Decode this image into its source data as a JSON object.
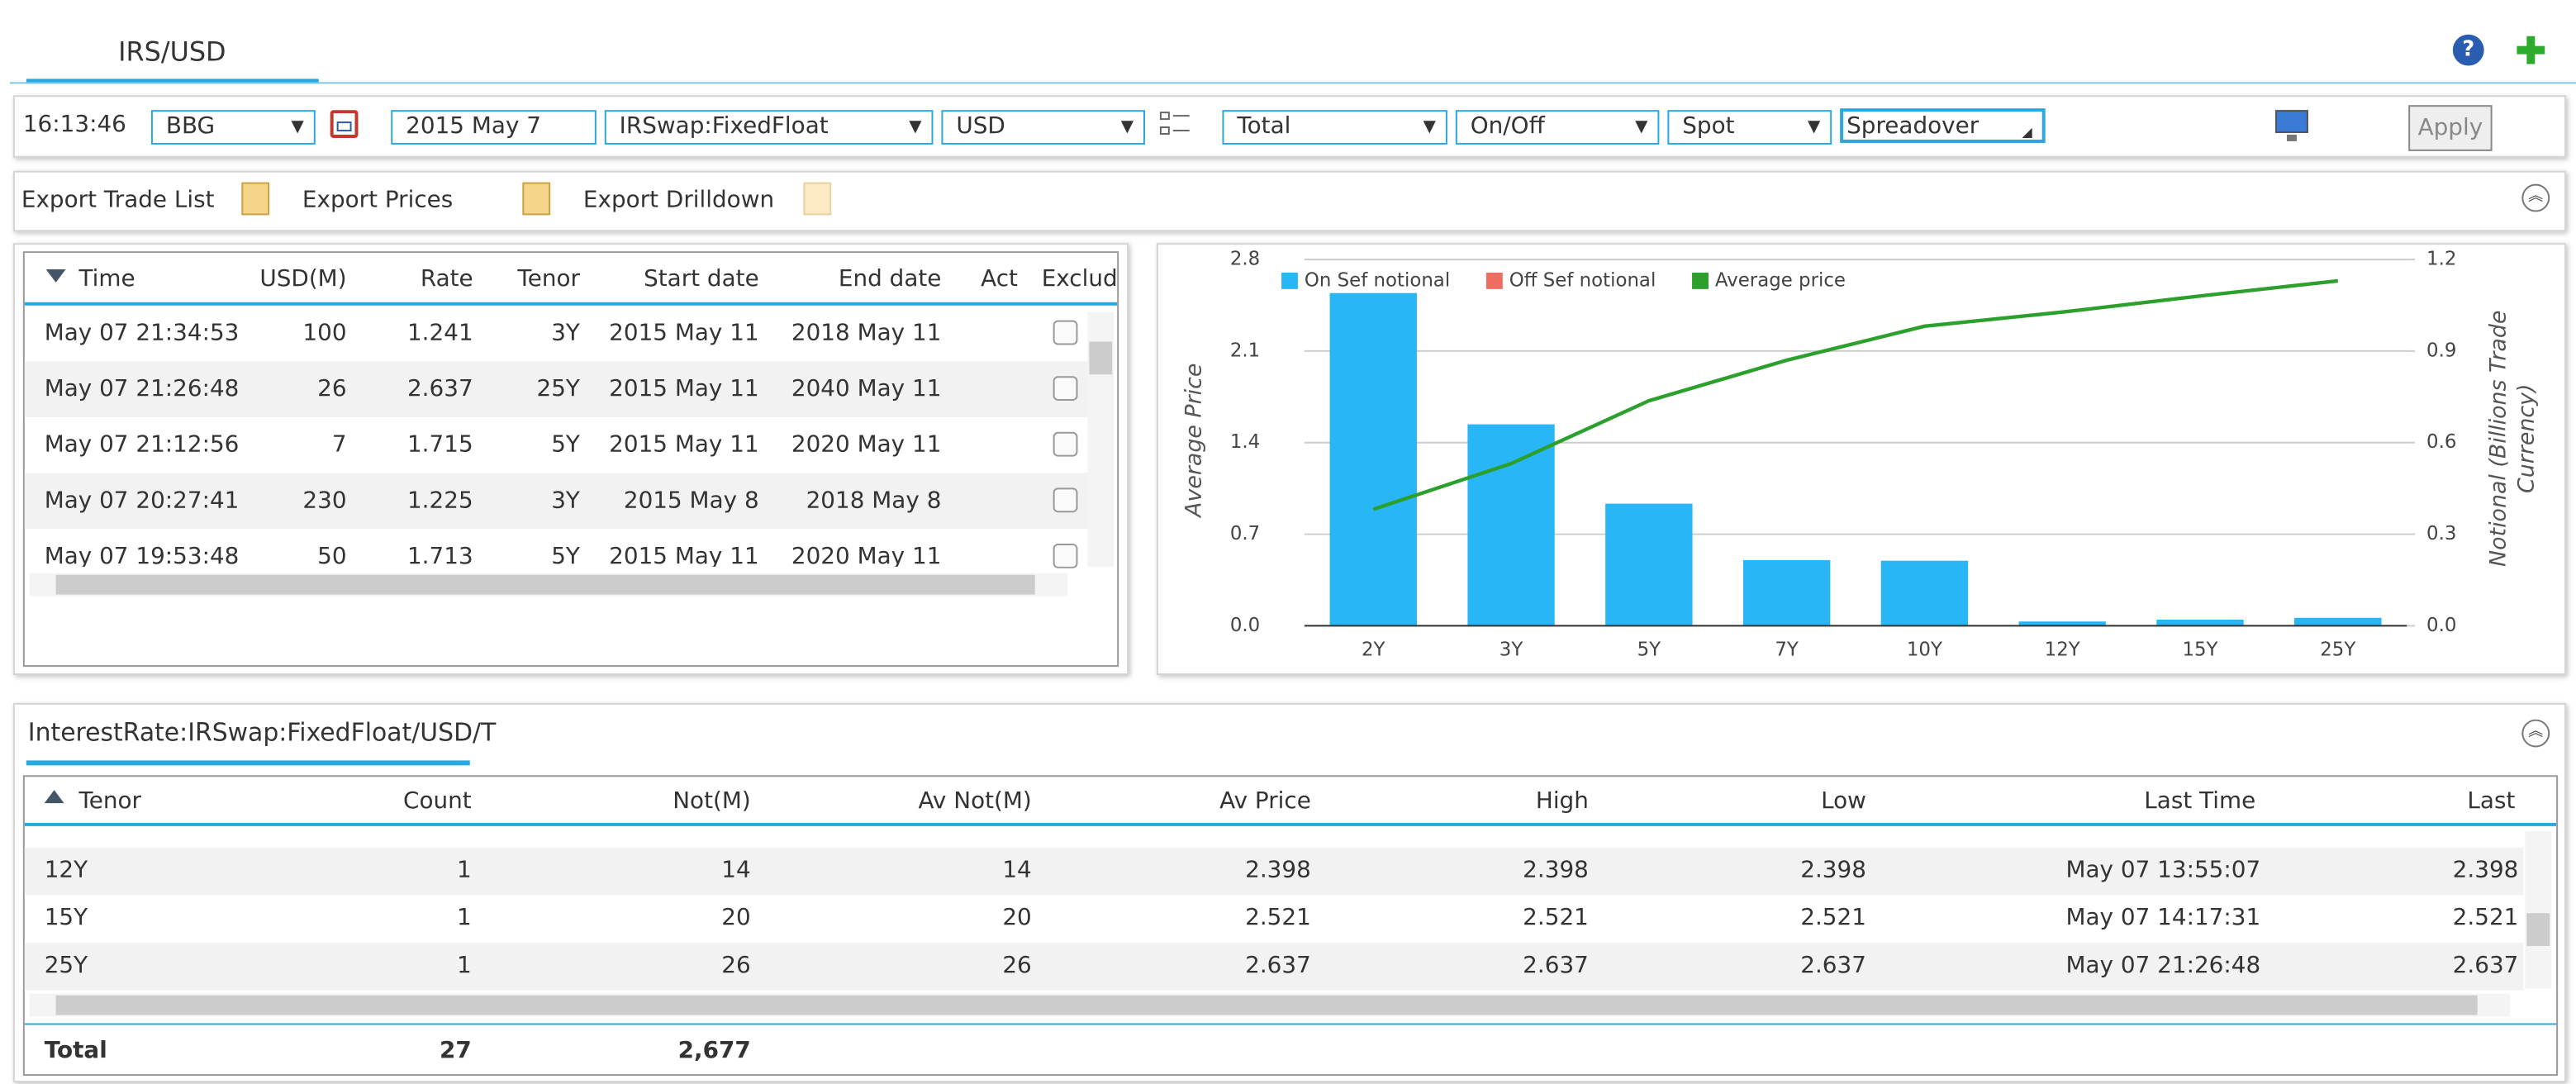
{
  "header": {
    "title": "IRS/USD"
  },
  "toolbar": {
    "time": "16:13:46",
    "source": "BBG",
    "date": "2015 May 7",
    "instrument": "IRSwap:FixedFloat",
    "currency": "USD",
    "aggregation": "Total",
    "sef": "On/Off",
    "settlement": "Spot",
    "spread": "Spreadover",
    "apply": "Apply"
  },
  "exports": [
    "Export Trade List",
    "Export Prices",
    "Export Drilldown"
  ],
  "trades": {
    "columns": [
      "Time",
      "USD(M)",
      "Rate",
      "Tenor",
      "Start date",
      "End date",
      "Act",
      "Exclude"
    ],
    "rows": [
      [
        "May 07 21:34:53",
        "100",
        "1.241",
        "3Y",
        "2015 May 11",
        "2018 May 11"
      ],
      [
        "May 07 21:26:48",
        "26",
        "2.637",
        "25Y",
        "2015 May 11",
        "2040 May 11"
      ],
      [
        "May 07 21:12:56",
        "7",
        "1.715",
        "5Y",
        "2015 May 11",
        "2020 May 11"
      ],
      [
        "May 07 20:27:41",
        "230",
        "1.225",
        "3Y",
        "2015 May 8",
        "2018 May 8"
      ],
      [
        "May 07 19:53:48",
        "50",
        "1.713",
        "5Y",
        "2015 May 11",
        "2020 May 11"
      ]
    ]
  },
  "chart_data": {
    "type": "bar",
    "ylabel": "Average Price",
    "y2label": "Notional (Billions Trade Currency)",
    "categories": [
      "2Y",
      "3Y",
      "5Y",
      "7Y",
      "10Y",
      "12Y",
      "15Y",
      "25Y"
    ],
    "series": [
      {
        "name": "On Sef notional",
        "type": "bar",
        "axis": "y2",
        "color": "#29b6f6",
        "values": [
          1.09,
          0.66,
          0.4,
          0.215,
          0.213,
          0.014,
          0.02,
          0.026
        ]
      },
      {
        "name": "Off Sef notional",
        "type": "bar",
        "axis": "y2",
        "color": "#ef6c60",
        "values": [
          0,
          0,
          0,
          0,
          0,
          0,
          0,
          0
        ]
      },
      {
        "name": "Average price",
        "type": "line",
        "color": "#2ca02c",
        "values": [
          0.89,
          1.24,
          1.72,
          2.03,
          2.29,
          2.398,
          2.521,
          2.637
        ]
      }
    ],
    "ylim": [
      0,
      2.8
    ],
    "yticks": [
      {
        "value": 0,
        "label": "0.0"
      },
      0.7,
      1.4,
      2.1,
      2.8
    ],
    "y2lim": [
      0,
      1.2
    ],
    "y2ticks": [
      {
        "value": 0,
        "label": "0.0"
      },
      0.3,
      0.6,
      0.9,
      1.2
    ],
    "grid": true,
    "legend": "top-left"
  },
  "summary": {
    "title": "InterestRate:IRSwap:FixedFloat/USD/T",
    "columns": [
      "Tenor",
      "Count",
      "Not(M)",
      "Av Not(M)",
      "Av Price",
      "High",
      "Low",
      "Last Time",
      "Last"
    ],
    "rows": [
      [
        "12Y",
        "1",
        "14",
        "14",
        "2.398",
        "2.398",
        "2.398",
        "May 07 13:55:07",
        "2.398"
      ],
      [
        "15Y",
        "1",
        "20",
        "20",
        "2.521",
        "2.521",
        "2.521",
        "May 07 14:17:31",
        "2.521"
      ],
      [
        "25Y",
        "1",
        "26",
        "26",
        "2.637",
        "2.637",
        "2.637",
        "May 07 21:26:48",
        "2.637"
      ]
    ],
    "total": [
      "Total",
      "27",
      "2,677"
    ]
  }
}
